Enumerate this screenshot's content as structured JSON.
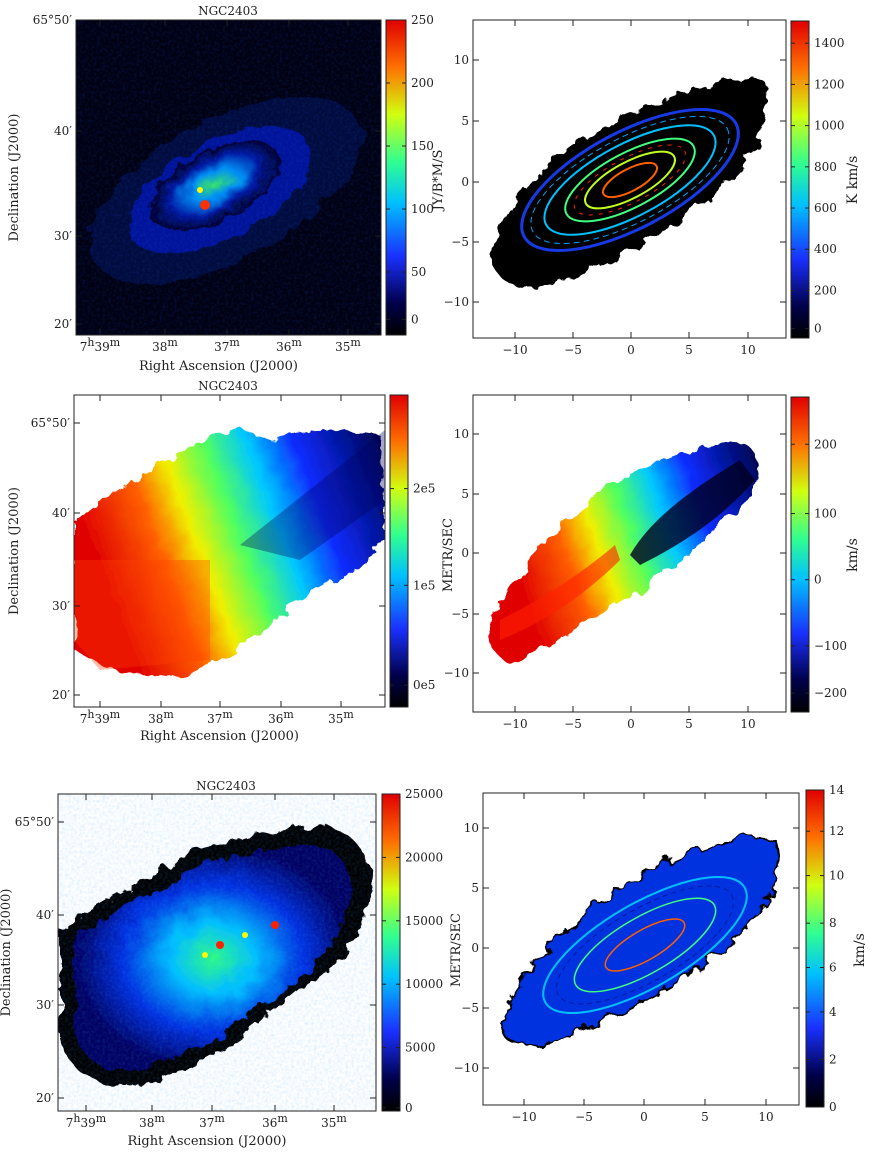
{
  "panels": [
    {
      "id": "p1",
      "kind": "sky",
      "title": "NGC2403",
      "xlabel": "Right Ascension (J2000)",
      "ylabel": "Declination (J2000)",
      "xticks": [
        {
          "h": "7",
          "m": "39"
        },
        {
          "m": "38"
        },
        {
          "m": "37"
        },
        {
          "m": "36"
        },
        {
          "m": "35"
        }
      ],
      "yticks": [
        "65°50′",
        "40′",
        "30′",
        "20′"
      ],
      "colorbar": {
        "ticks": [
          "250",
          "200",
          "150",
          "100",
          "50",
          "0"
        ],
        "label": "JY/B*M/S"
      }
    },
    {
      "id": "p2",
      "kind": "offset",
      "xticks": [
        "−10",
        "−5",
        "0",
        "5",
        "10"
      ],
      "yticks": [
        "10",
        "5",
        "0",
        "−5",
        "−10"
      ],
      "colorbar": {
        "ticks": [
          "1400",
          "1200",
          "1000",
          "800",
          "600",
          "400",
          "200",
          "0"
        ],
        "label": "K km/s"
      }
    },
    {
      "id": "p3",
      "kind": "sky",
      "title": "NGC2403",
      "xlabel": "Right Ascension (J2000)",
      "ylabel": "Declination (J2000)",
      "xticks": [
        {
          "h": "7",
          "m": "39"
        },
        {
          "m": "38"
        },
        {
          "m": "37"
        },
        {
          "m": "36"
        },
        {
          "m": "35"
        }
      ],
      "yticks": [
        "65°50′",
        "40′",
        "30′",
        "20′"
      ],
      "colorbar": {
        "ticks": [
          "2e5",
          "1e5",
          "0e5"
        ],
        "label": "METR/SEC"
      }
    },
    {
      "id": "p4",
      "kind": "offset",
      "xticks": [
        "−10",
        "−5",
        "0",
        "5",
        "10"
      ],
      "yticks": [
        "10",
        "5",
        "0",
        "−5",
        "−10"
      ],
      "colorbar": {
        "ticks": [
          "200",
          "100",
          "0",
          "−100",
          "−200"
        ],
        "label": "km/s"
      }
    },
    {
      "id": "p5",
      "kind": "sky",
      "title": "NGC2403",
      "xlabel": "Right Ascension (J2000)",
      "ylabel": "Declination (J2000)",
      "xticks": [
        {
          "h": "7",
          "m": "39"
        },
        {
          "m": "38"
        },
        {
          "m": "37"
        },
        {
          "m": "36"
        },
        {
          "m": "35"
        }
      ],
      "yticks": [
        "65°50′",
        "40′",
        "30′",
        "20′"
      ],
      "colorbar": {
        "ticks": [
          "25000",
          "20000",
          "15000",
          "10000",
          "5000",
          "0"
        ],
        "label": "METR/SEC"
      }
    },
    {
      "id": "p6",
      "kind": "offset",
      "xticks": [
        "−10",
        "−5",
        "0",
        "5",
        "10"
      ],
      "yticks": [
        "10",
        "5",
        "0",
        "−5",
        "−10"
      ],
      "colorbar": {
        "ticks": [
          "14",
          "12",
          "10",
          "8",
          "6",
          "4",
          "2",
          "0"
        ],
        "label": "km/s"
      }
    }
  ]
}
